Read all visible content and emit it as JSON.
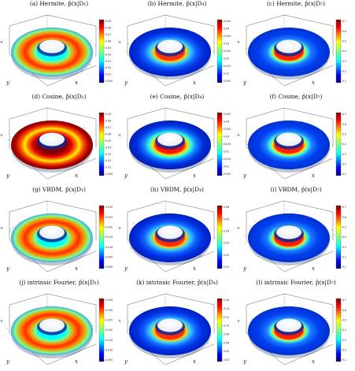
{
  "figure": {
    "panels": [
      {
        "id": "a",
        "caption": "(a) Hermite, p̂(x|D₁)",
        "intensity": "high",
        "cbar": [
          "0.09",
          "0.08",
          "0.07",
          "0.06",
          "0.05",
          "0.04",
          "0.03",
          "0.02",
          "0.01",
          "0.000"
        ]
      },
      {
        "id": "b",
        "caption": "(b) Hermite, p̂(x|D₄)",
        "intensity": "mid",
        "cbar": [
          "0.045",
          "0.04",
          "0.035",
          "0.03",
          "0.025",
          "0.02",
          "0.015",
          "0.01",
          "0.005"
        ]
      },
      {
        "id": "c",
        "caption": "(c) Hermite, p̂(x|D₇)",
        "intensity": "low",
        "cbar": [
          "0.7",
          "0.6",
          "0.5",
          "0.4",
          "0.3",
          "0.2",
          "0.1"
        ]
      },
      {
        "id": "d",
        "caption": "(d) Cosine, p̂(x|D₁)",
        "intensity": "veryhigh",
        "cbar": [
          "0.09",
          "0.08",
          "0.07",
          "0.06",
          "0.05",
          "0.04",
          "0.03",
          "0.02",
          "0.01",
          "0.000"
        ]
      },
      {
        "id": "e",
        "caption": "(e) Cosine, p̂(x|D₄)",
        "intensity": "mid2",
        "cbar": [
          "0.045",
          "0.04",
          "0.035",
          "0.03",
          "0.025",
          "0.02",
          "0.015",
          "0.01",
          "0.005"
        ]
      },
      {
        "id": "f",
        "caption": "(f) Cosine, p̂(x|D₇)",
        "intensity": "low2",
        "cbar": [
          "0.7",
          "0.6",
          "0.5",
          "0.4",
          "0.3",
          "0.2",
          "0.1"
        ]
      },
      {
        "id": "g",
        "caption": "(g) VBDM, p̂(x|D₁)",
        "intensity": "high",
        "cbar": [
          "0.030",
          "0.025",
          "0.020",
          "0.015",
          "0.010",
          "0.005",
          "0.000"
        ]
      },
      {
        "id": "h",
        "caption": "(h) VBDM, p̂(x|D₄)",
        "intensity": "mid",
        "cbar": [
          "0.06",
          "0.05",
          "0.04",
          "0.03",
          "0.02",
          "0.01"
        ]
      },
      {
        "id": "i",
        "caption": "(i) VBDM, p̂(x|D₇)",
        "intensity": "low",
        "cbar": [
          "0.7",
          "0.6",
          "0.5",
          "0.4",
          "0.3",
          "0.2",
          "0.1"
        ]
      },
      {
        "id": "j",
        "caption": "(j) intrinsic Fourier, p̂(x|D₁)",
        "intensity": "high",
        "cbar": [
          "0.035",
          "0.030",
          "0.025",
          "0.020",
          "0.015",
          "0.010",
          "0.005"
        ]
      },
      {
        "id": "k",
        "caption": "(k) intrinsic Fourier, p̂(x|D₄)",
        "intensity": "mid",
        "cbar": [
          "0.16",
          "0.14",
          "0.12",
          "0.10",
          "0.08",
          "0.06",
          "0.04",
          "0.02"
        ]
      },
      {
        "id": "l",
        "caption": "(l) intrinsic Fourier, p̂(x|D₇)",
        "intensity": "low",
        "cbar": [
          "0.7",
          "0.6",
          "0.5",
          "0.4",
          "0.3",
          "0.2",
          "0.1"
        ]
      }
    ],
    "axis_labels": {
      "x": "x",
      "y": "y",
      "z": "z"
    }
  }
}
